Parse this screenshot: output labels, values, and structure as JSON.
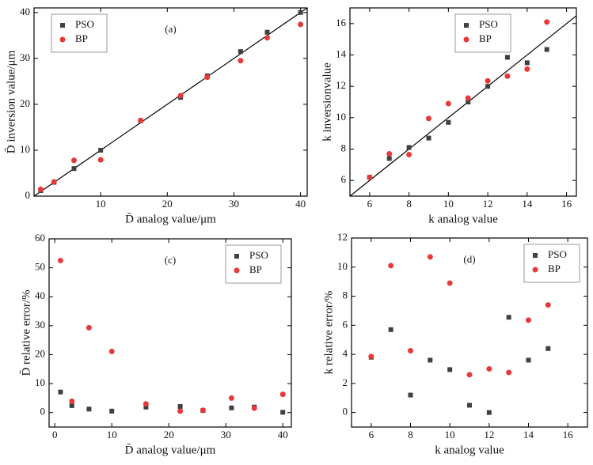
{
  "chart_data": [
    {
      "type": "scatter",
      "annotation": "(a)",
      "xlabel": "D̄ analog value/μm",
      "ylabel": "D̄ inversion value/μm",
      "x": [
        1,
        3,
        6,
        10,
        16,
        22,
        26,
        31,
        35,
        40
      ],
      "series": [
        {
          "name": "PSO",
          "color": "#404040",
          "marker": "square",
          "values": [
            1.2,
            3,
            6,
            10,
            16.4,
            21.5,
            26.2,
            31.5,
            35.7,
            40
          ]
        },
        {
          "name": "BP",
          "color": "#e8393a",
          "marker": "circle",
          "values": [
            1.5,
            3.1,
            7.8,
            7.9,
            16.5,
            21.9,
            25.9,
            29.5,
            34.5,
            37.4
          ]
        }
      ],
      "xlim": [
        0,
        41
      ],
      "ylim": [
        0,
        41
      ],
      "xticks": [
        10,
        20,
        30,
        40
      ],
      "yticks": [
        0,
        10,
        20,
        30,
        40
      ],
      "diagonal": true,
      "legend": "upper left"
    },
    {
      "type": "scatter",
      "annotation": "(b)",
      "xlabel": "k analog value",
      "ylabel": "k inversionvalue",
      "x": [
        6,
        7,
        8,
        9,
        10,
        11,
        12,
        13,
        14,
        15
      ],
      "series": [
        {
          "name": "PSO",
          "color": "#404040",
          "marker": "square",
          "values": [
            6.2,
            7.4,
            8.1,
            8.7,
            9.7,
            11.0,
            12.0,
            13.85,
            13.5,
            14.35
          ]
        },
        {
          "name": "BP",
          "color": "#e8393a",
          "marker": "circle",
          "values": [
            6.2,
            7.7,
            7.65,
            9.95,
            10.9,
            11.25,
            12.35,
            12.65,
            13.1,
            16.1
          ]
        }
      ],
      "xlim": [
        5,
        16.5
      ],
      "ylim": [
        5,
        17
      ],
      "xticks": [
        6,
        8,
        10,
        12,
        14,
        16
      ],
      "yticks": [
        6,
        8,
        10,
        12,
        14,
        16
      ],
      "diagonal": true,
      "legend": "upper right"
    },
    {
      "type": "scatter",
      "annotation": "(c)",
      "xlabel": "D̄ analog value/μm",
      "ylabel": "D̄ relative error/%",
      "x": [
        1,
        3,
        6,
        10,
        16,
        22,
        26,
        31,
        35,
        40
      ],
      "series": [
        {
          "name": "PSO",
          "color": "#404040",
          "marker": "square",
          "values": [
            7.1,
            2.4,
            1.2,
            0.5,
            1.9,
            2.1,
            0.7,
            1.6,
            1.9,
            0.1
          ]
        },
        {
          "name": "BP",
          "color": "#e8393a",
          "marker": "circle",
          "values": [
            52.5,
            3.9,
            29.3,
            21.1,
            3.0,
            0.5,
            0.8,
            5.0,
            1.5,
            6.3
          ]
        }
      ],
      "xlim": [
        -1,
        41.5
      ],
      "ylim": [
        -5,
        60
      ],
      "xticks": [
        0,
        10,
        20,
        30,
        40
      ],
      "yticks": [
        0,
        10,
        20,
        30,
        40,
        50,
        60
      ],
      "diagonal": false,
      "legend": "upper right"
    },
    {
      "type": "scatter",
      "annotation": "(d)",
      "xlabel": "k analog value",
      "ylabel": "k relative error/%",
      "x": [
        6,
        7,
        8,
        9,
        10,
        11,
        12,
        13,
        14,
        15
      ],
      "series": [
        {
          "name": "PSO",
          "color": "#404040",
          "marker": "square",
          "values": [
            3.8,
            5.7,
            1.2,
            3.6,
            2.95,
            0.5,
            0.0,
            6.55,
            3.6,
            4.4
          ]
        },
        {
          "name": "BP",
          "color": "#e8393a",
          "marker": "circle",
          "values": [
            3.85,
            10.1,
            4.25,
            10.7,
            8.9,
            2.6,
            3.0,
            2.75,
            6.35,
            7.4
          ]
        }
      ],
      "xlim": [
        5,
        17
      ],
      "ylim": [
        -1,
        12
      ],
      "xticks": [
        6,
        8,
        10,
        12,
        14,
        16
      ],
      "yticks": [
        0,
        2,
        4,
        6,
        8,
        10,
        12
      ],
      "diagonal": false,
      "legend": "upper right"
    }
  ]
}
